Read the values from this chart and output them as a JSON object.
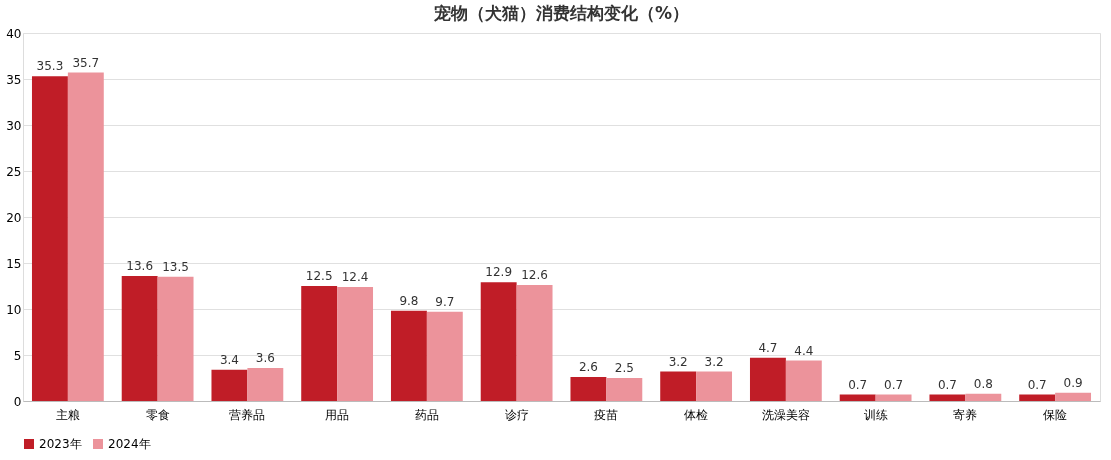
{
  "chart_data": {
    "type": "bar",
    "title": "宠物（犬猫）消费结构变化（%）",
    "categories": [
      "主粮",
      "零食",
      "营养品",
      "用品",
      "药品",
      "诊疗",
      "疫苗",
      "体检",
      "洗澡美容",
      "训练",
      "寄养",
      "保险"
    ],
    "series": [
      {
        "name": "2023年",
        "color": "#c01d27",
        "values": [
          35.3,
          13.6,
          3.4,
          12.5,
          9.8,
          12.9,
          2.6,
          3.2,
          4.7,
          0.7,
          0.7,
          0.7
        ]
      },
      {
        "name": "2024年",
        "color": "#ec939b",
        "values": [
          35.7,
          13.5,
          3.6,
          12.4,
          9.7,
          12.6,
          2.5,
          3.2,
          4.4,
          0.7,
          0.8,
          0.9
        ]
      }
    ],
    "ylim": [
      0,
      40
    ],
    "yticks": [
      0,
      5,
      10,
      15,
      20,
      25,
      30,
      35,
      40
    ],
    "grid": "y",
    "legend": "bottom",
    "data_labels": true
  }
}
